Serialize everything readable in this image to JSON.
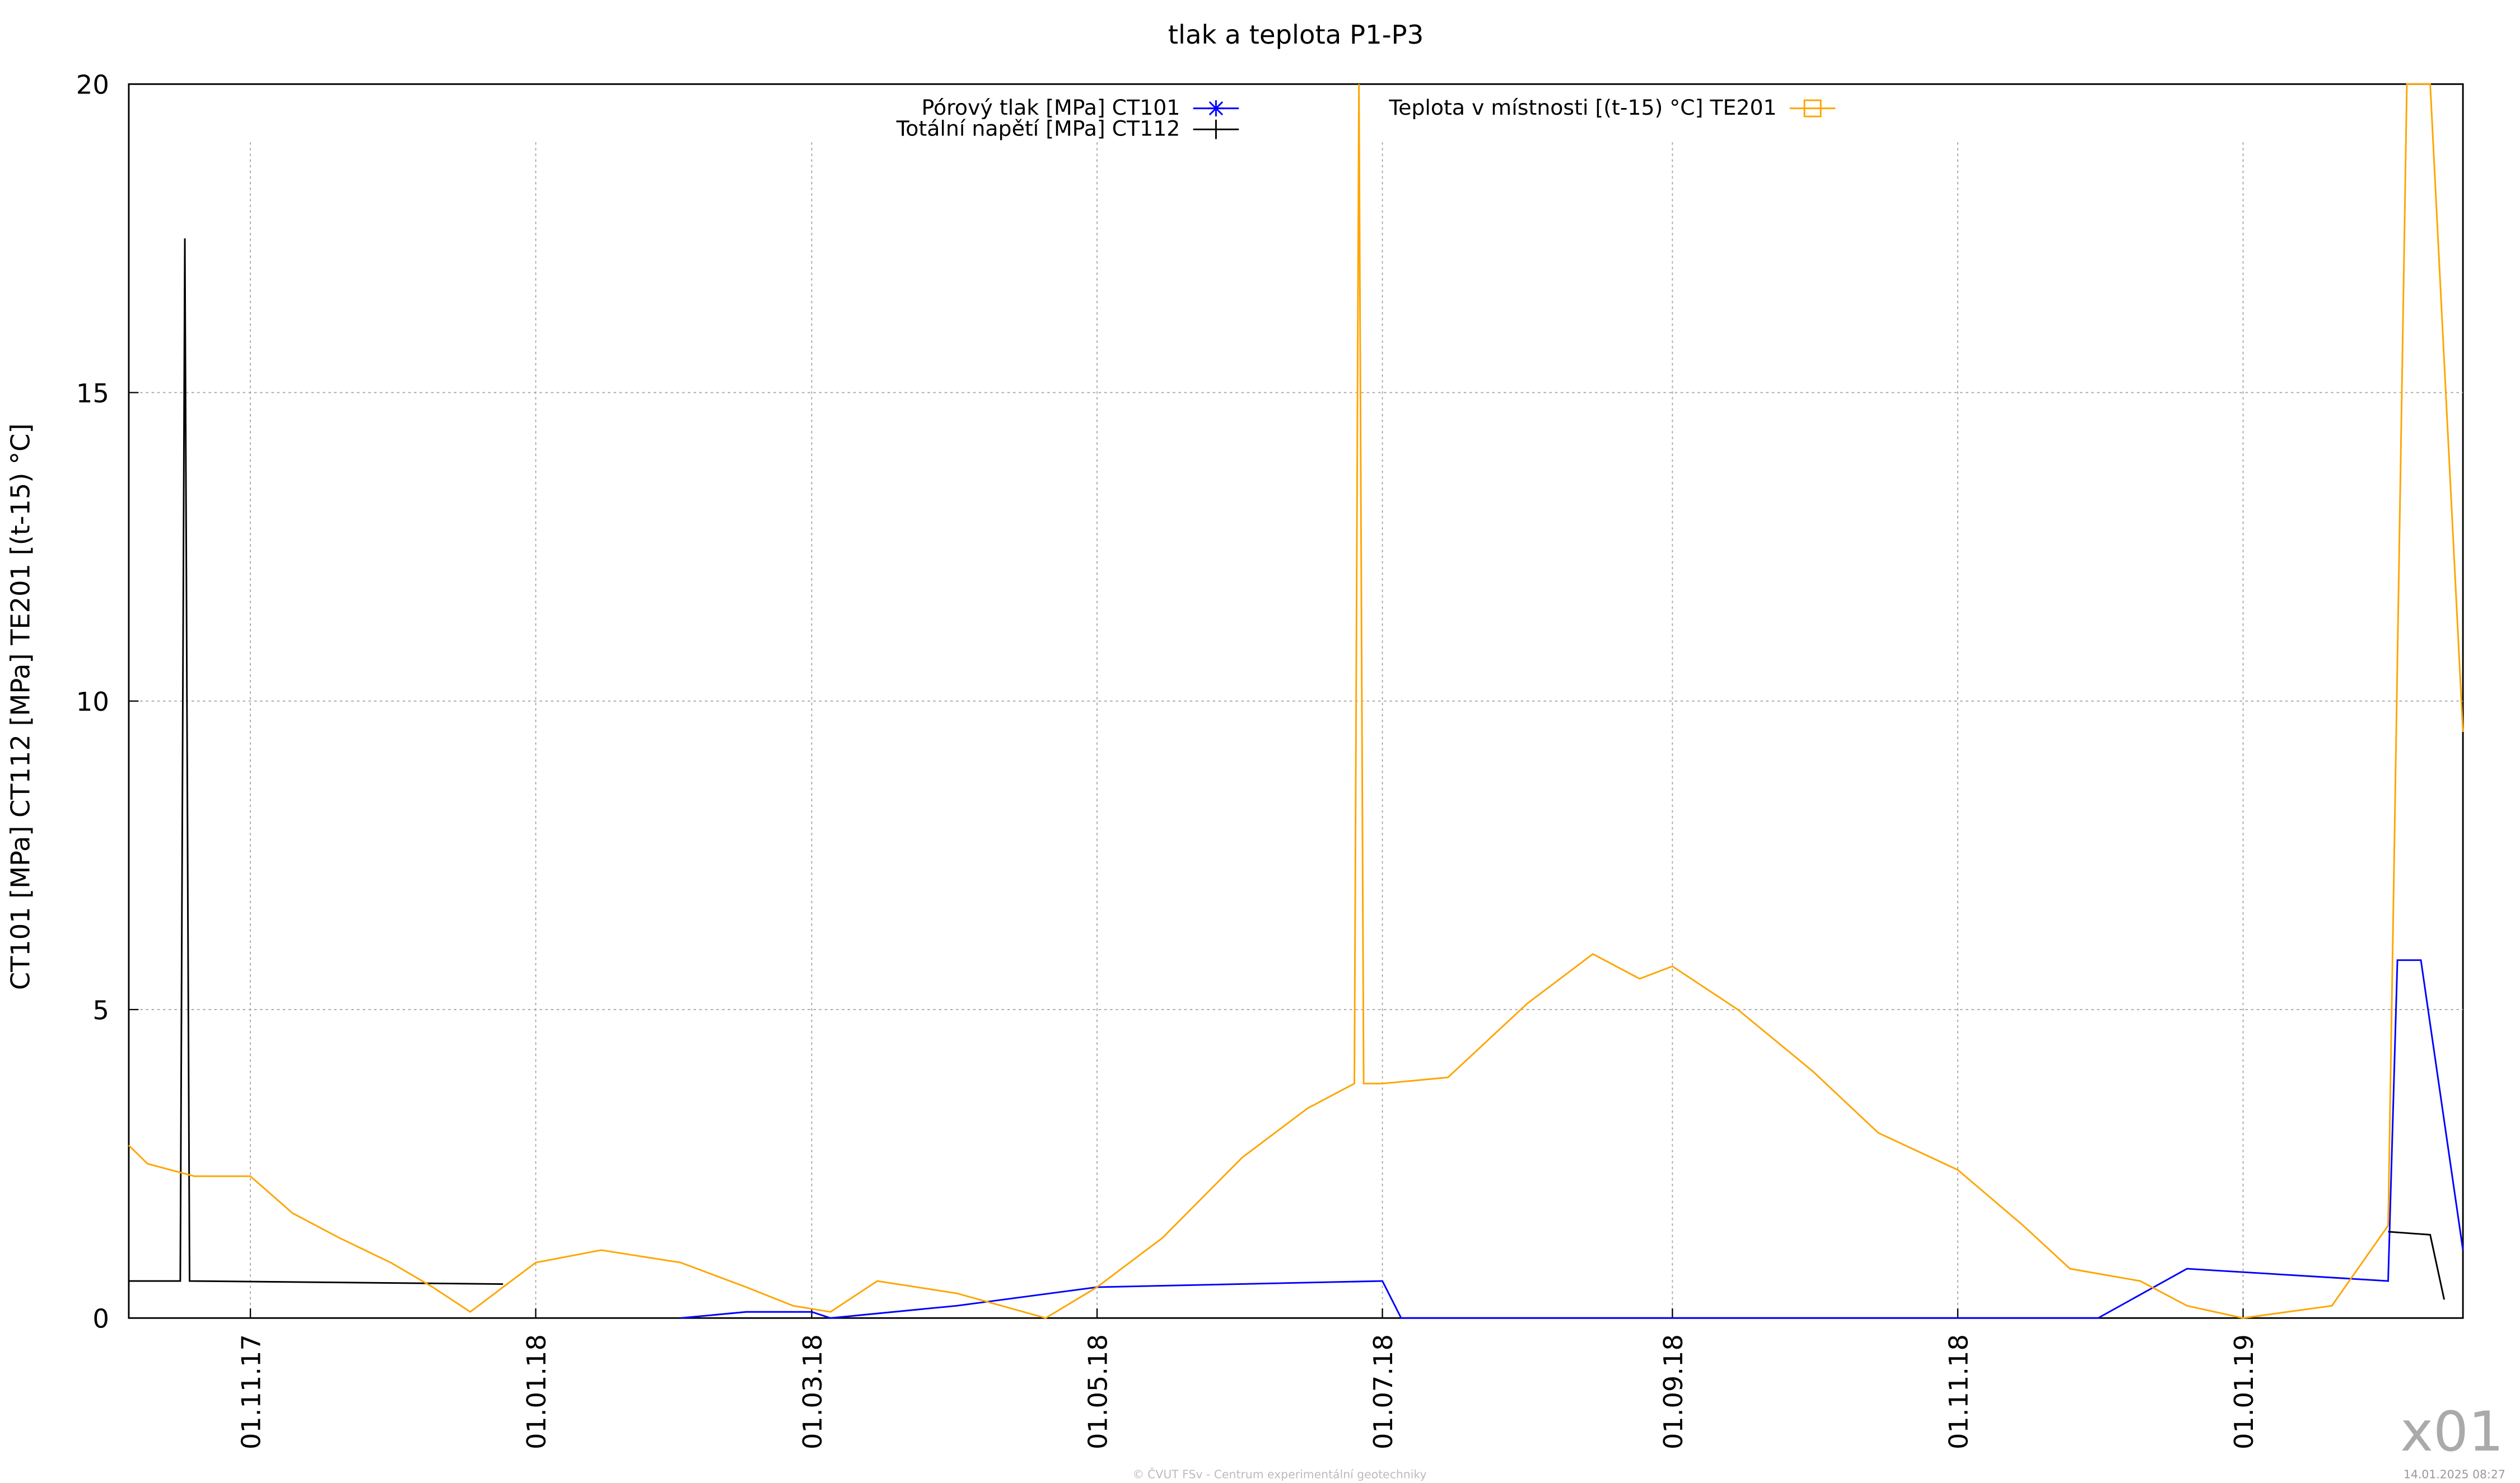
{
  "chart_data": {
    "type": "line",
    "title": "tlak a teplota P1-P3",
    "y_label": "CT101 [MPa] CT112 [MPa] TE201 [(t-15) °C]",
    "footer": "© ČVUT FSv - Centrum experimentální geotechniky",
    "timestamp": "14.01.2025 08:27",
    "tag": "x01",
    "xlim": [
      "06.10.17",
      "17.02.19"
    ],
    "xticks": [
      "01.11.17",
      "01.01.18",
      "01.03.18",
      "01.05.18",
      "01.07.18",
      "01.09.18",
      "01.11.18",
      "01.01.19"
    ],
    "ylim": [
      0,
      20
    ],
    "yticks": [
      0,
      5,
      10,
      15,
      20
    ],
    "grid": true,
    "series": [
      {
        "name": "Pórový tlak [MPa] CT101",
        "color": "#0000ff",
        "x": [
          "01.02.18",
          "15.02.18",
          "01.03.18",
          "05.03.18",
          "01.04.18",
          "01.05.18",
          "01.07.18",
          "05.07.18",
          "01.12.18",
          "20.12.18",
          "01.02.19",
          "03.02.19",
          "08.02.19",
          "17.02.19"
        ],
        "values": [
          0,
          0.1,
          0.1,
          0,
          0.2,
          0.5,
          0.6,
          0,
          0,
          0.8,
          0.6,
          5.8,
          5.8,
          1.1
        ]
      },
      {
        "name": "Totální napětí [MPa] CT112",
        "color": "#000000",
        "x": [
          "06.10.17",
          "17.10.17",
          "18.10.17",
          "19.10.17",
          "25.12.17",
          "01.01.18",
          "01.02.19",
          "10.02.19",
          "13.02.19"
        ],
        "values": [
          0.6,
          0.6,
          17.5,
          0.6,
          0.55,
          null,
          1.4,
          1.35,
          0.3
        ]
      },
      {
        "name": "Teplota v místnosti [(t-15) °C] TE201",
        "color": "#ffa500",
        "x": [
          "06.10.17",
          "10.10.17",
          "20.10.17",
          "01.11.17",
          "10.11.17",
          "20.11.17",
          "01.12.17",
          "10.12.17",
          "18.12.17",
          "25.12.17",
          "01.01.18",
          "15.01.18",
          "01.02.18",
          "15.02.18",
          "25.02.18",
          "05.03.18",
          "15.03.18",
          "01.04.18",
          "20.04.18",
          "01.05.18",
          "15.05.18",
          "01.06.18",
          "15.06.18",
          "25.06.18",
          "26.06.18",
          "27.06.18",
          "01.07.18",
          "15.07.18",
          "01.08.18",
          "15.08.18",
          "25.08.18",
          "01.09.18",
          "15.09.18",
          "01.10.18",
          "15.10.18",
          "01.11.18",
          "15.11.18",
          "25.11.18",
          "10.12.18",
          "20.12.18",
          "01.01.19",
          "20.01.19",
          "01.02.19",
          "05.02.19",
          "10.02.19",
          "17.02.19"
        ],
        "values": [
          2.8,
          2.5,
          2.3,
          2.3,
          1.7,
          1.3,
          0.9,
          0.5,
          0.1,
          0.5,
          0.9,
          1.1,
          0.9,
          0.5,
          0.2,
          0.1,
          0.6,
          0.4,
          0,
          0.5,
          1.3,
          2.6,
          3.4,
          3.8,
          20,
          3.8,
          3.8,
          3.9,
          5.1,
          5.9,
          5.5,
          5.7,
          5.0,
          4.0,
          3.0,
          2.4,
          1.5,
          0.8,
          0.6,
          0.2,
          0,
          0.2,
          1.5,
          20,
          20,
          9.5
        ]
      }
    ]
  }
}
